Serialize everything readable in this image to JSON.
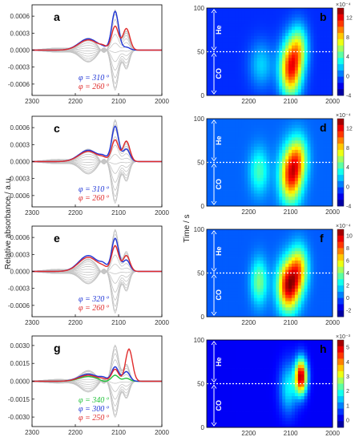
{
  "figure": {
    "ylabel_left": "Relative absorbance / a.u.",
    "ylabel_right": "Time / s"
  },
  "chart_data": [
    {
      "id": "a",
      "type": "line",
      "panel_label": "a",
      "xlim": [
        2300,
        2000
      ],
      "x_ticks": [
        2300,
        2200,
        2100,
        2000
      ],
      "ylim": [
        -0.0008,
        0.0008
      ],
      "y_ticks": [
        "0.0006",
        "0.0003",
        "0.0000",
        "-0.0003",
        "-0.0006"
      ],
      "y_tick_values": [
        0.0006,
        0.0003,
        0,
        -0.0003,
        -0.0006
      ],
      "series": [
        {
          "name": "φ = 310 º",
          "color": "#1f35d6",
          "role": "phase",
          "amp": 1.0,
          "peaks": [
            [
              2170,
              0.0002
            ],
            [
              2108,
              0.00068
            ],
            [
              2082,
              5e-05
            ]
          ],
          "dips": [
            [
              2135,
              2e-05
            ]
          ]
        },
        {
          "name": "φ = 260 º",
          "color": "#e02b2b",
          "role": "phase",
          "amp": 1.0,
          "peaks": [
            [
              2170,
              0.00018
            ],
            [
              2108,
              0.00042
            ],
            [
              2082,
              0.00038
            ]
          ],
          "dips": [
            [
              2135,
              4e-05
            ]
          ]
        }
      ],
      "grey_curves": "phase-resolved spectra 0–360 º",
      "grey_dip": -0.00075
    },
    {
      "id": "c",
      "type": "line",
      "panel_label": "c",
      "xlim": [
        2300,
        2000
      ],
      "x_ticks": [
        2300,
        2200,
        2100,
        2000
      ],
      "ylim": [
        -0.0008,
        0.0008
      ],
      "y_ticks": [
        "0.0006",
        "0.0003",
        "0.0000",
        "-0.0003",
        "-0.0006"
      ],
      "y_tick_values": [
        0.0006,
        0.0003,
        0,
        -0.0003,
        -0.0006
      ],
      "series": [
        {
          "name": "φ = 310 º",
          "color": "#1f35d6",
          "role": "phase",
          "peaks": [
            [
              2170,
              0.0002
            ],
            [
              2108,
              0.00062
            ],
            [
              2082,
              0.00022
            ]
          ],
          "dips": [
            [
              2135,
              6e-05
            ]
          ]
        },
        {
          "name": "φ = 260 º",
          "color": "#e02b2b",
          "role": "phase",
          "peaks": [
            [
              2170,
              0.00018
            ],
            [
              2108,
              0.00038
            ],
            [
              2082,
              0.00036
            ]
          ],
          "dips": [
            [
              2135,
              4e-05
            ]
          ]
        }
      ],
      "grey_dip": -0.00078
    },
    {
      "id": "e",
      "type": "line",
      "panel_label": "e",
      "xlim": [
        2300,
        2000
      ],
      "x_ticks": [
        2300,
        2200,
        2100,
        2000
      ],
      "ylim": [
        -0.0008,
        0.0008
      ],
      "y_ticks": [
        "0.0006",
        "0.0003",
        "0.0000",
        "-0.0003",
        "-0.0006"
      ],
      "y_tick_values": [
        0.0006,
        0.0003,
        0,
        -0.0003,
        -0.0006
      ],
      "series": [
        {
          "name": "φ = 320 º",
          "color": "#1f35d6",
          "role": "phase",
          "peaks": [
            [
              2170,
              0.00028
            ],
            [
              2108,
              0.00058
            ],
            [
              2082,
              0.0002
            ]
          ],
          "dips": [
            [
              2135,
              8e-05
            ]
          ]
        },
        {
          "name": "φ = 260 º",
          "color": "#e02b2b",
          "role": "phase",
          "peaks": [
            [
              2170,
              0.00025
            ],
            [
              2108,
              0.00045
            ],
            [
              2082,
              0.00028
            ]
          ],
          "dips": [
            [
              2135,
              4e-05
            ]
          ]
        }
      ],
      "grey_dip": -0.00078
    },
    {
      "id": "g",
      "type": "line",
      "panel_label": "g",
      "xlim": [
        2300,
        2000
      ],
      "x_ticks": [
        2300,
        2200,
        2100,
        2000
      ],
      "ylim": [
        -0.0038,
        0.0038
      ],
      "y_ticks": [
        "0.0030",
        "0.0015",
        "0.0000",
        "-0.0015",
        "-0.0030"
      ],
      "y_tick_values": [
        0.003,
        0.0015,
        0,
        -0.0015,
        -0.003
      ],
      "series": [
        {
          "name": "φ = 340 º",
          "color": "#22c23a",
          "role": "phase",
          "peaks": [
            [
              2170,
              0.0004
            ],
            [
              2108,
              0.0005
            ],
            [
              2082,
              0.00025
            ]
          ],
          "dips": [
            [
              2135,
              -0.0001
            ]
          ]
        },
        {
          "name": "φ = 300 º",
          "color": "#1f35d6",
          "role": "phase",
          "peaks": [
            [
              2170,
              0.0006
            ],
            [
              2108,
              0.0012
            ],
            [
              2082,
              0.0008
            ]
          ],
          "dips": [
            [
              2135,
              0.0002
            ]
          ]
        },
        {
          "name": "φ = 250 º",
          "color": "#e02b2b",
          "role": "phase",
          "peaks": [
            [
              2170,
              0.0005
            ],
            [
              2108,
              0.001
            ],
            [
              2076,
              0.0027
            ]
          ],
          "dips": [
            [
              2135,
              0.0001
            ]
          ]
        }
      ],
      "grey_dip": -0.0032
    },
    {
      "id": "b",
      "type": "heatmap",
      "panel_label": "b",
      "xlim": [
        2300,
        2000
      ],
      "x_ticks": [
        2200,
        2100,
        2000
      ],
      "ylim": [
        0,
        100
      ],
      "y_ticks": [
        0,
        50,
        100
      ],
      "colorbar": {
        "exponent": "×10⁻⁴",
        "ticks": [
          "12",
          "8",
          "4",
          "0",
          "-4"
        ],
        "range": [
          -4,
          14
        ]
      },
      "regions": [
        {
          "label": "He",
          "from": 50,
          "to": 100
        },
        {
          "label": "CO",
          "from": 0,
          "to": 50
        }
      ],
      "switch_time": 50,
      "blobs": [
        {
          "x": 2100,
          "t": 30,
          "sx": 18,
          "st": 22,
          "v": 12
        },
        {
          "x": 2080,
          "t": 55,
          "sx": 15,
          "st": 18,
          "v": 6
        },
        {
          "x": 2170,
          "t": 35,
          "sx": 20,
          "st": 18,
          "v": 3
        }
      ],
      "baseline": -1
    },
    {
      "id": "d",
      "type": "heatmap",
      "panel_label": "d",
      "xlim": [
        2300,
        2000
      ],
      "x_ticks": [
        2200,
        2100,
        2000
      ],
      "ylim": [
        0,
        100
      ],
      "y_ticks": [
        0,
        50,
        100
      ],
      "colorbar": {
        "exponent": "×10⁻⁴",
        "ticks": [
          "12",
          "8",
          "4",
          "0",
          "-4"
        ],
        "range": [
          -4,
          14
        ]
      },
      "regions": [
        {
          "label": "He",
          "from": 50,
          "to": 100
        },
        {
          "label": "CO",
          "from": 0,
          "to": 50
        }
      ],
      "switch_time": 50,
      "blobs": [
        {
          "x": 2100,
          "t": 35,
          "sx": 18,
          "st": 22,
          "v": 11
        },
        {
          "x": 2080,
          "t": 55,
          "sx": 15,
          "st": 18,
          "v": 6
        },
        {
          "x": 2175,
          "t": 40,
          "sx": 16,
          "st": 18,
          "v": 4
        }
      ],
      "baseline": 0
    },
    {
      "id": "f",
      "type": "heatmap",
      "panel_label": "f",
      "xlim": [
        2300,
        2000
      ],
      "x_ticks": [
        2200,
        2100,
        2000
      ],
      "ylim": [
        0,
        100
      ],
      "y_ticks": [
        0,
        50,
        100
      ],
      "colorbar": {
        "exponent": "×10⁻⁴",
        "ticks": [
          "10",
          "8",
          "6",
          "4",
          "2",
          "0",
          "-2"
        ],
        "range": [
          -3,
          11
        ]
      },
      "regions": [
        {
          "label": "He",
          "from": 50,
          "to": 100
        },
        {
          "label": "CO",
          "from": 0,
          "to": 50
        }
      ],
      "switch_time": 50,
      "blobs": [
        {
          "x": 2105,
          "t": 35,
          "sx": 18,
          "st": 20,
          "v": 10
        },
        {
          "x": 2080,
          "t": 55,
          "sx": 15,
          "st": 18,
          "v": 6
        },
        {
          "x": 2175,
          "t": 40,
          "sx": 14,
          "st": 18,
          "v": 4
        }
      ],
      "baseline": 0
    },
    {
      "id": "h",
      "type": "heatmap",
      "panel_label": "h",
      "xlim": [
        2300,
        2000
      ],
      "x_ticks": [
        2200,
        2100,
        2000
      ],
      "ylim": [
        0,
        100
      ],
      "y_ticks": [
        0,
        50,
        100
      ],
      "colorbar": {
        "exponent": "×10⁻³",
        "ticks": [
          "5",
          "4",
          "3",
          "2",
          "1",
          "0"
        ],
        "range": [
          -0.5,
          5.5
        ]
      },
      "regions": [
        {
          "label": "He",
          "from": 50,
          "to": 100
        },
        {
          "label": "CO",
          "from": 0,
          "to": 50
        }
      ],
      "switch_time": 50,
      "blobs": [
        {
          "x": 2075,
          "t": 58,
          "sx": 10,
          "st": 14,
          "v": 5
        },
        {
          "x": 2105,
          "t": 45,
          "sx": 15,
          "st": 20,
          "v": 1.5
        }
      ],
      "baseline": 0.2
    }
  ]
}
